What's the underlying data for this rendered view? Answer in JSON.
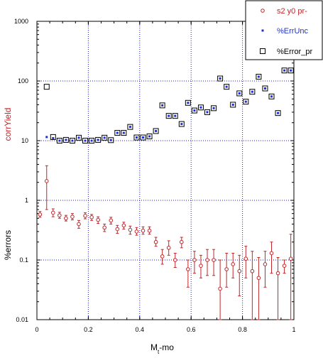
{
  "chart_data": {
    "type": "scatter",
    "xlabel": "M",
    "xlabel_sub": "t",
    "xlabel_suffix": "-mo",
    "ylabel_top": "corrYield",
    "ylabel_bottom": "%errors",
    "xlim": [
      0,
      1
    ],
    "ylim": [
      0.01,
      1000
    ],
    "yscale": "log",
    "grid": true,
    "legend_position": "top-right",
    "x_ticks": [
      "0",
      "0.2",
      "0.4",
      "0.6",
      "0.8",
      "1"
    ],
    "x_tick_values": [
      0,
      0.2,
      0.4,
      0.6,
      0.8,
      1
    ],
    "y_ticks": [
      "0.01",
      "0.1",
      "1",
      "10",
      "100",
      "1000"
    ],
    "y_tick_values": [
      0.01,
      0.1,
      1,
      10,
      100,
      1000
    ],
    "colors": {
      "yield": "#c0262a",
      "errunc": "#1d2fd4",
      "errorpr": "#000000",
      "grid": "#1a1ad6",
      "ylabel_top": "#c0262a",
      "ylabel_bottom": "#000000"
    },
    "series": [
      {
        "name": "s2 y0 pr-",
        "marker": "open-circle",
        "x": [
          0.012,
          0.038,
          0.063,
          0.088,
          0.113,
          0.138,
          0.163,
          0.188,
          0.213,
          0.238,
          0.263,
          0.288,
          0.313,
          0.338,
          0.363,
          0.388,
          0.413,
          0.438,
          0.463,
          0.488,
          0.513,
          0.538,
          0.563,
          0.588,
          0.613,
          0.638,
          0.663,
          0.688,
          0.713,
          0.738,
          0.763,
          0.788,
          0.813,
          0.838,
          0.863,
          0.888,
          0.913,
          0.938,
          0.963,
          0.988
        ],
        "y": [
          0.58,
          2.1,
          0.62,
          0.56,
          0.5,
          0.53,
          0.4,
          0.55,
          0.52,
          0.47,
          0.35,
          0.46,
          0.33,
          0.38,
          0.32,
          0.3,
          0.31,
          0.31,
          0.2,
          0.115,
          0.16,
          0.1,
          0.2,
          0.07,
          0.1,
          0.08,
          0.1,
          0.1,
          0.033,
          0.07,
          0.085,
          0.065,
          0.105,
          0.065,
          0.05,
          0.085,
          0.13,
          0.06,
          0.08,
          0.105
        ],
        "err_low": [
          0.52,
          0.7,
          0.53,
          0.5,
          0.45,
          0.47,
          0.34,
          0.49,
          0.46,
          0.41,
          0.3,
          0.4,
          0.28,
          0.33,
          0.27,
          0.26,
          0.27,
          0.27,
          0.17,
          0.085,
          0.12,
          0.075,
          0.16,
          0.035,
          0.06,
          0.05,
          0.055,
          0.055,
          0.01,
          0.035,
          0.05,
          0.025,
          0.05,
          0.01,
          0.01,
          0.035,
          0.06,
          0.01,
          0.06,
          0.01
        ],
        "err_high": [
          0.65,
          3.8,
          0.72,
          0.63,
          0.56,
          0.6,
          0.46,
          0.62,
          0.58,
          0.53,
          0.4,
          0.52,
          0.38,
          0.43,
          0.37,
          0.35,
          0.36,
          0.36,
          0.24,
          0.15,
          0.21,
          0.13,
          0.24,
          0.1,
          0.14,
          0.12,
          0.15,
          0.15,
          0.1,
          0.13,
          0.13,
          0.12,
          0.17,
          0.14,
          0.11,
          0.14,
          0.2,
          0.11,
          0.1,
          0.27
        ]
      },
      {
        "name": "%ErrUnc",
        "marker": "small-filled-square",
        "x": [
          0.038,
          0.063,
          0.088,
          0.113,
          0.138,
          0.163,
          0.188,
          0.213,
          0.238,
          0.263,
          0.288,
          0.313,
          0.338,
          0.363,
          0.388,
          0.413,
          0.438,
          0.463,
          0.488,
          0.513,
          0.538,
          0.563,
          0.588,
          0.613,
          0.638,
          0.663,
          0.688,
          0.713,
          0.738,
          0.763,
          0.788,
          0.813,
          0.838,
          0.863,
          0.888,
          0.913,
          0.938,
          0.963,
          0.988
        ],
        "y": [
          11.5,
          11,
          10,
          10.3,
          10,
          11.2,
          10,
          10,
          10.3,
          11.2,
          10.2,
          13.5,
          13.5,
          17,
          11.3,
          11.3,
          11.8,
          14.5,
          39,
          26,
          26,
          19,
          43,
          32,
          36,
          30,
          35,
          110,
          80,
          40,
          62,
          45,
          66,
          118,
          75,
          55,
          29,
          150,
          150
        ]
      },
      {
        "name": "%Error_pr",
        "marker": "open-square",
        "x": [
          0.038,
          0.063,
          0.088,
          0.113,
          0.138,
          0.163,
          0.188,
          0.213,
          0.238,
          0.263,
          0.288,
          0.313,
          0.338,
          0.363,
          0.388,
          0.413,
          0.438,
          0.463,
          0.488,
          0.513,
          0.538,
          0.563,
          0.588,
          0.613,
          0.638,
          0.663,
          0.688,
          0.713,
          0.738,
          0.763,
          0.788,
          0.813,
          0.838,
          0.863,
          0.888,
          0.913,
          0.938,
          0.963,
          0.988
        ],
        "y": [
          80,
          11.5,
          10,
          10.3,
          10,
          11.2,
          10,
          10,
          10.3,
          11.2,
          10.2,
          13.5,
          13.5,
          17,
          11.3,
          11.3,
          11.8,
          14.5,
          39,
          26,
          26,
          19,
          43,
          32,
          36,
          30,
          35,
          110,
          80,
          40,
          62,
          45,
          66,
          118,
          75,
          55,
          29,
          150,
          150
        ]
      }
    ]
  }
}
